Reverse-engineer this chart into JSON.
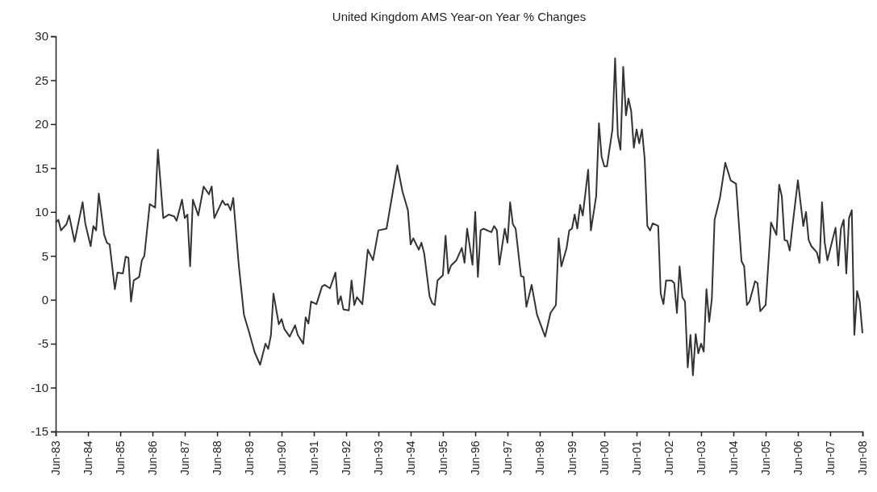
{
  "chart_data": {
    "type": "line",
    "title": "United Kingdom AMS Year-on Year % Changes",
    "x": [
      "1983-06",
      "1983-07",
      "1983-08",
      "1983-10",
      "1983-11",
      "1984-01",
      "1984-04",
      "1984-05",
      "1984-07",
      "1984-08",
      "1984-09",
      "1984-10",
      "1984-12",
      "1985-01",
      "1985-02",
      "1985-04",
      "1985-05",
      "1985-07",
      "1985-08",
      "1985-09",
      "1985-10",
      "1985-11",
      "1986-01",
      "1986-02",
      "1986-03",
      "1986-05",
      "1986-07",
      "1986-08",
      "1986-10",
      "1986-12",
      "1987-02",
      "1987-03",
      "1987-05",
      "1987-06",
      "1987-07",
      "1987-08",
      "1987-09",
      "1987-11",
      "1988-01",
      "1988-03",
      "1988-04",
      "1988-05",
      "1988-08",
      "1988-09",
      "1988-10",
      "1988-11",
      "1988-12",
      "1989-02",
      "1989-04",
      "1989-06",
      "1989-08",
      "1989-10",
      "1989-12",
      "1990-01",
      "1990-02",
      "1990-03",
      "1990-05",
      "1990-06",
      "1990-07",
      "1990-09",
      "1990-11",
      "1990-12",
      "1991-02",
      "1991-03",
      "1991-04",
      "1991-05",
      "1991-07",
      "1991-09",
      "1991-10",
      "1991-12",
      "1992-02",
      "1992-03",
      "1992-04",
      "1992-05",
      "1992-07",
      "1992-08",
      "1992-09",
      "1992-10",
      "1992-12",
      "1993-02",
      "1993-04",
      "1993-06",
      "1993-09",
      "1994-01",
      "1994-03",
      "1994-05",
      "1994-06",
      "1994-07",
      "1994-09",
      "1994-10",
      "1994-11",
      "1995-01",
      "1995-02",
      "1995-03",
      "1995-04",
      "1995-06",
      "1995-07",
      "1995-08",
      "1995-09",
      "1995-11",
      "1996-01",
      "1996-02",
      "1996-03",
      "1996-05",
      "1996-06",
      "1996-07",
      "1996-08",
      "1996-09",
      "1996-12",
      "1997-01",
      "1997-02",
      "1997-03",
      "1997-05",
      "1997-06",
      "1997-07",
      "1997-08",
      "1997-09",
      "1997-11",
      "1997-12",
      "1998-01",
      "1998-03",
      "1998-05",
      "1998-08",
      "1998-10",
      "1998-12",
      "1999-01",
      "1999-02",
      "1999-04",
      "1999-05",
      "1999-06",
      "1999-07",
      "1999-08",
      "1999-09",
      "1999-10",
      "1999-12",
      "2000-01",
      "2000-03",
      "2000-04",
      "2000-05",
      "2000-06",
      "2000-07",
      "2000-09",
      "2000-10",
      "2000-11",
      "2000-12",
      "2001-01",
      "2001-02",
      "2001-03",
      "2001-04",
      "2001-05",
      "2001-06",
      "2001-07",
      "2001-08",
      "2001-09",
      "2001-10",
      "2001-11",
      "2001-12",
      "2002-02",
      "2002-03",
      "2002-04",
      "2002-05",
      "2002-07",
      "2002-08",
      "2002-09",
      "2002-10",
      "2002-11",
      "2002-12",
      "2003-01",
      "2003-02",
      "2003-03",
      "2003-04",
      "2003-05",
      "2003-06",
      "2003-07",
      "2003-08",
      "2003-09",
      "2003-10",
      "2003-11",
      "2004-01",
      "2004-03",
      "2004-05",
      "2004-07",
      "2004-09",
      "2004-10",
      "2004-11",
      "2004-12",
      "2005-02",
      "2005-03",
      "2005-04",
      "2005-06",
      "2005-08",
      "2005-10",
      "2005-11",
      "2005-12",
      "2006-01",
      "2006-02",
      "2006-03",
      "2006-04",
      "2006-06",
      "2006-08",
      "2006-09",
      "2006-10",
      "2006-11",
      "2007-01",
      "2007-02",
      "2007-03",
      "2007-04",
      "2007-05",
      "2007-08",
      "2007-09",
      "2007-10",
      "2007-11",
      "2007-12",
      "2008-01",
      "2008-02",
      "2008-03",
      "2008-04",
      "2008-05",
      "2008-06"
    ],
    "series": [
      {
        "color": "#333333",
        "values": [
          8.8,
          9.1,
          7.9,
          8.6,
          9.6,
          6.6,
          11.1,
          8.7,
          6.1,
          8.4,
          7.9,
          12.1,
          7.4,
          6.5,
          6.3,
          1.2,
          3.1,
          3.0,
          4.9,
          4.8,
          -0.2,
          2.2,
          2.6,
          4.5,
          5.0,
          10.9,
          10.5,
          17.1,
          9.3,
          9.7,
          9.5,
          9.0,
          11.4,
          9.3,
          9.7,
          3.8,
          11.4,
          9.6,
          12.9,
          12.0,
          12.9,
          9.3,
          11.3,
          10.8,
          10.9,
          10.2,
          11.6,
          4.0,
          -1.7,
          -3.8,
          -6.0,
          -7.4,
          -5.0,
          -5.6,
          -4.0,
          0.7,
          -2.8,
          -2.2,
          -3.3,
          -4.2,
          -2.9,
          -4.0,
          -5.0,
          -2.0,
          -2.7,
          -0.2,
          -0.5,
          1.5,
          1.7,
          1.3,
          3.1,
          -0.5,
          0.4,
          -1.1,
          -1.2,
          2.2,
          -0.6,
          0.3,
          -0.5,
          5.7,
          4.5,
          7.9,
          8.1,
          15.3,
          12.3,
          10.2,
          6.3,
          7.0,
          5.7,
          6.5,
          5.3,
          0.4,
          -0.4,
          -0.6,
          2.2,
          2.8,
          7.3,
          3.0,
          3.9,
          4.5,
          5.9,
          4.2,
          8.1,
          4.0,
          10.0,
          2.6,
          7.9,
          8.1,
          7.7,
          8.4,
          7.9,
          4.0,
          8.1,
          6.5,
          11.1,
          8.6,
          8.1,
          2.7,
          2.6,
          -0.8,
          1.7,
          -1.7,
          -4.2,
          -1.5,
          -0.6,
          7.0,
          3.8,
          5.9,
          7.9,
          8.1,
          9.7,
          8.1,
          10.8,
          9.6,
          14.8,
          7.9,
          11.8,
          20.1,
          16.3,
          15.2,
          15.2,
          19.4,
          27.5,
          18.7,
          17.1,
          26.5,
          21.0,
          22.9,
          21.5,
          17.3,
          19.4,
          17.8,
          19.4,
          16.0,
          8.4,
          7.9,
          8.7,
          8.4,
          0.7,
          -0.5,
          2.2,
          2.2,
          1.9,
          -1.5,
          3.8,
          0.3,
          -0.2,
          -7.7,
          -4.0,
          -8.6,
          -3.9,
          -6.1,
          -5.0,
          -5.9,
          1.2,
          -2.5,
          0.1,
          9.1,
          11.6,
          15.6,
          13.6,
          13.2,
          4.4,
          3.8,
          -0.6,
          -0.2,
          2.1,
          1.9,
          -1.3,
          -0.6,
          8.8,
          7.4,
          13.1,
          11.8,
          6.8,
          6.7,
          5.6,
          8.4,
          13.6,
          8.4,
          10.0,
          6.8,
          6.1,
          5.4,
          4.2,
          11.1,
          6.5,
          4.5,
          8.2,
          3.9,
          8.1,
          9.1,
          3.0,
          9.3,
          10.2,
          -4.0,
          1.0,
          -0.2,
          -3.8
        ]
      }
    ],
    "xlim": [
      "1983-06",
      "2008-06"
    ],
    "xticks": [
      {
        "value": "1983-06",
        "label": "Jun-83"
      },
      {
        "value": "1984-06",
        "label": "Jun-84"
      },
      {
        "value": "1985-06",
        "label": "Jun-85"
      },
      {
        "value": "1986-06",
        "label": "Jun-86"
      },
      {
        "value": "1987-06",
        "label": "Jun-87"
      },
      {
        "value": "1988-06",
        "label": "Jun-88"
      },
      {
        "value": "1989-06",
        "label": "Jun-89"
      },
      {
        "value": "1990-06",
        "label": "Jun-90"
      },
      {
        "value": "1991-06",
        "label": "Jun-91"
      },
      {
        "value": "1992-06",
        "label": "Jun-92"
      },
      {
        "value": "1993-06",
        "label": "Jun-93"
      },
      {
        "value": "1994-06",
        "label": "Jun-94"
      },
      {
        "value": "1995-06",
        "label": "Jun-95"
      },
      {
        "value": "1996-06",
        "label": "Jun-96"
      },
      {
        "value": "1997-06",
        "label": "Jun-97"
      },
      {
        "value": "1998-06",
        "label": "Jun-98"
      },
      {
        "value": "1999-06",
        "label": "Jun-99"
      },
      {
        "value": "2000-06",
        "label": "Jun-00"
      },
      {
        "value": "2001-06",
        "label": "Jun-01"
      },
      {
        "value": "2002-06",
        "label": "Jun-02"
      },
      {
        "value": "2003-06",
        "label": "Jun-03"
      },
      {
        "value": "2004-06",
        "label": "Jun-04"
      },
      {
        "value": "2005-06",
        "label": "Jun-05"
      },
      {
        "value": "2006-06",
        "label": "Jun-06"
      },
      {
        "value": "2007-06",
        "label": "Jun-07"
      },
      {
        "value": "2008-06",
        "label": "Jun-08"
      }
    ],
    "ylim": [
      -15,
      30
    ],
    "yticks": [
      -15,
      -10,
      -5,
      0,
      5,
      10,
      15,
      20,
      25,
      30
    ],
    "marker": "none",
    "line_style": "solid"
  }
}
